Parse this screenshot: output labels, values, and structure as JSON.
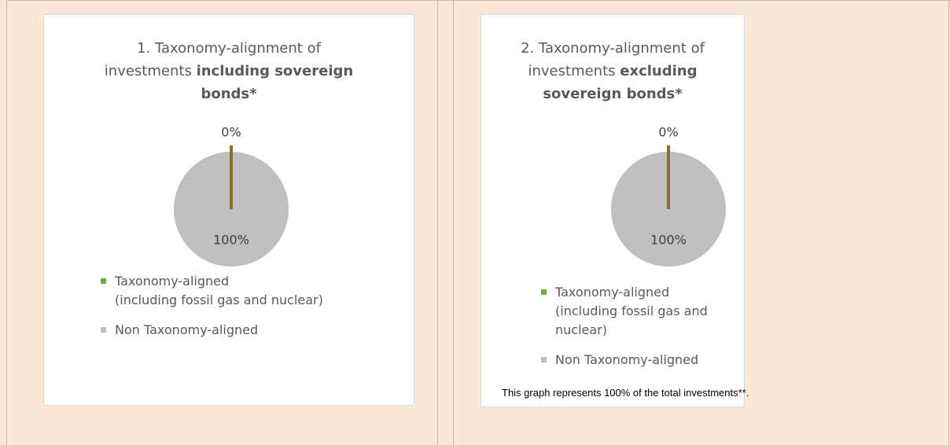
{
  "chart_data": [
    {
      "type": "pie",
      "title": [
        "1. Taxonomy-alignment of investments",
        "including sovereign bonds*"
      ],
      "categories": [
        "Taxonomy-aligned (including fossil gas and nuclear)",
        "Non Taxonomy-aligned"
      ],
      "values": [
        0,
        100
      ],
      "value_labels": [
        "0%",
        "100%"
      ],
      "colors": [
        "#8c6d2c",
        "#bfbfbf"
      ],
      "legend_colors": [
        "#70ad47",
        "#bfbfbf"
      ]
    },
    {
      "type": "pie",
      "title": [
        "2. Taxonomy-alignment of investments",
        "excluding sovereign bonds*"
      ],
      "categories": [
        "Taxonomy-aligned (including fossil gas and nuclear)",
        "Non Taxonomy-aligned"
      ],
      "values": [
        0,
        100
      ],
      "value_labels": [
        "0%",
        "100%"
      ],
      "colors": [
        "#8c6d2c",
        "#bfbfbf"
      ],
      "legend_colors": [
        "#70ad47",
        "#bfbfbf"
      ],
      "footnote": "This graph represents 100% of the total investments**."
    }
  ]
}
